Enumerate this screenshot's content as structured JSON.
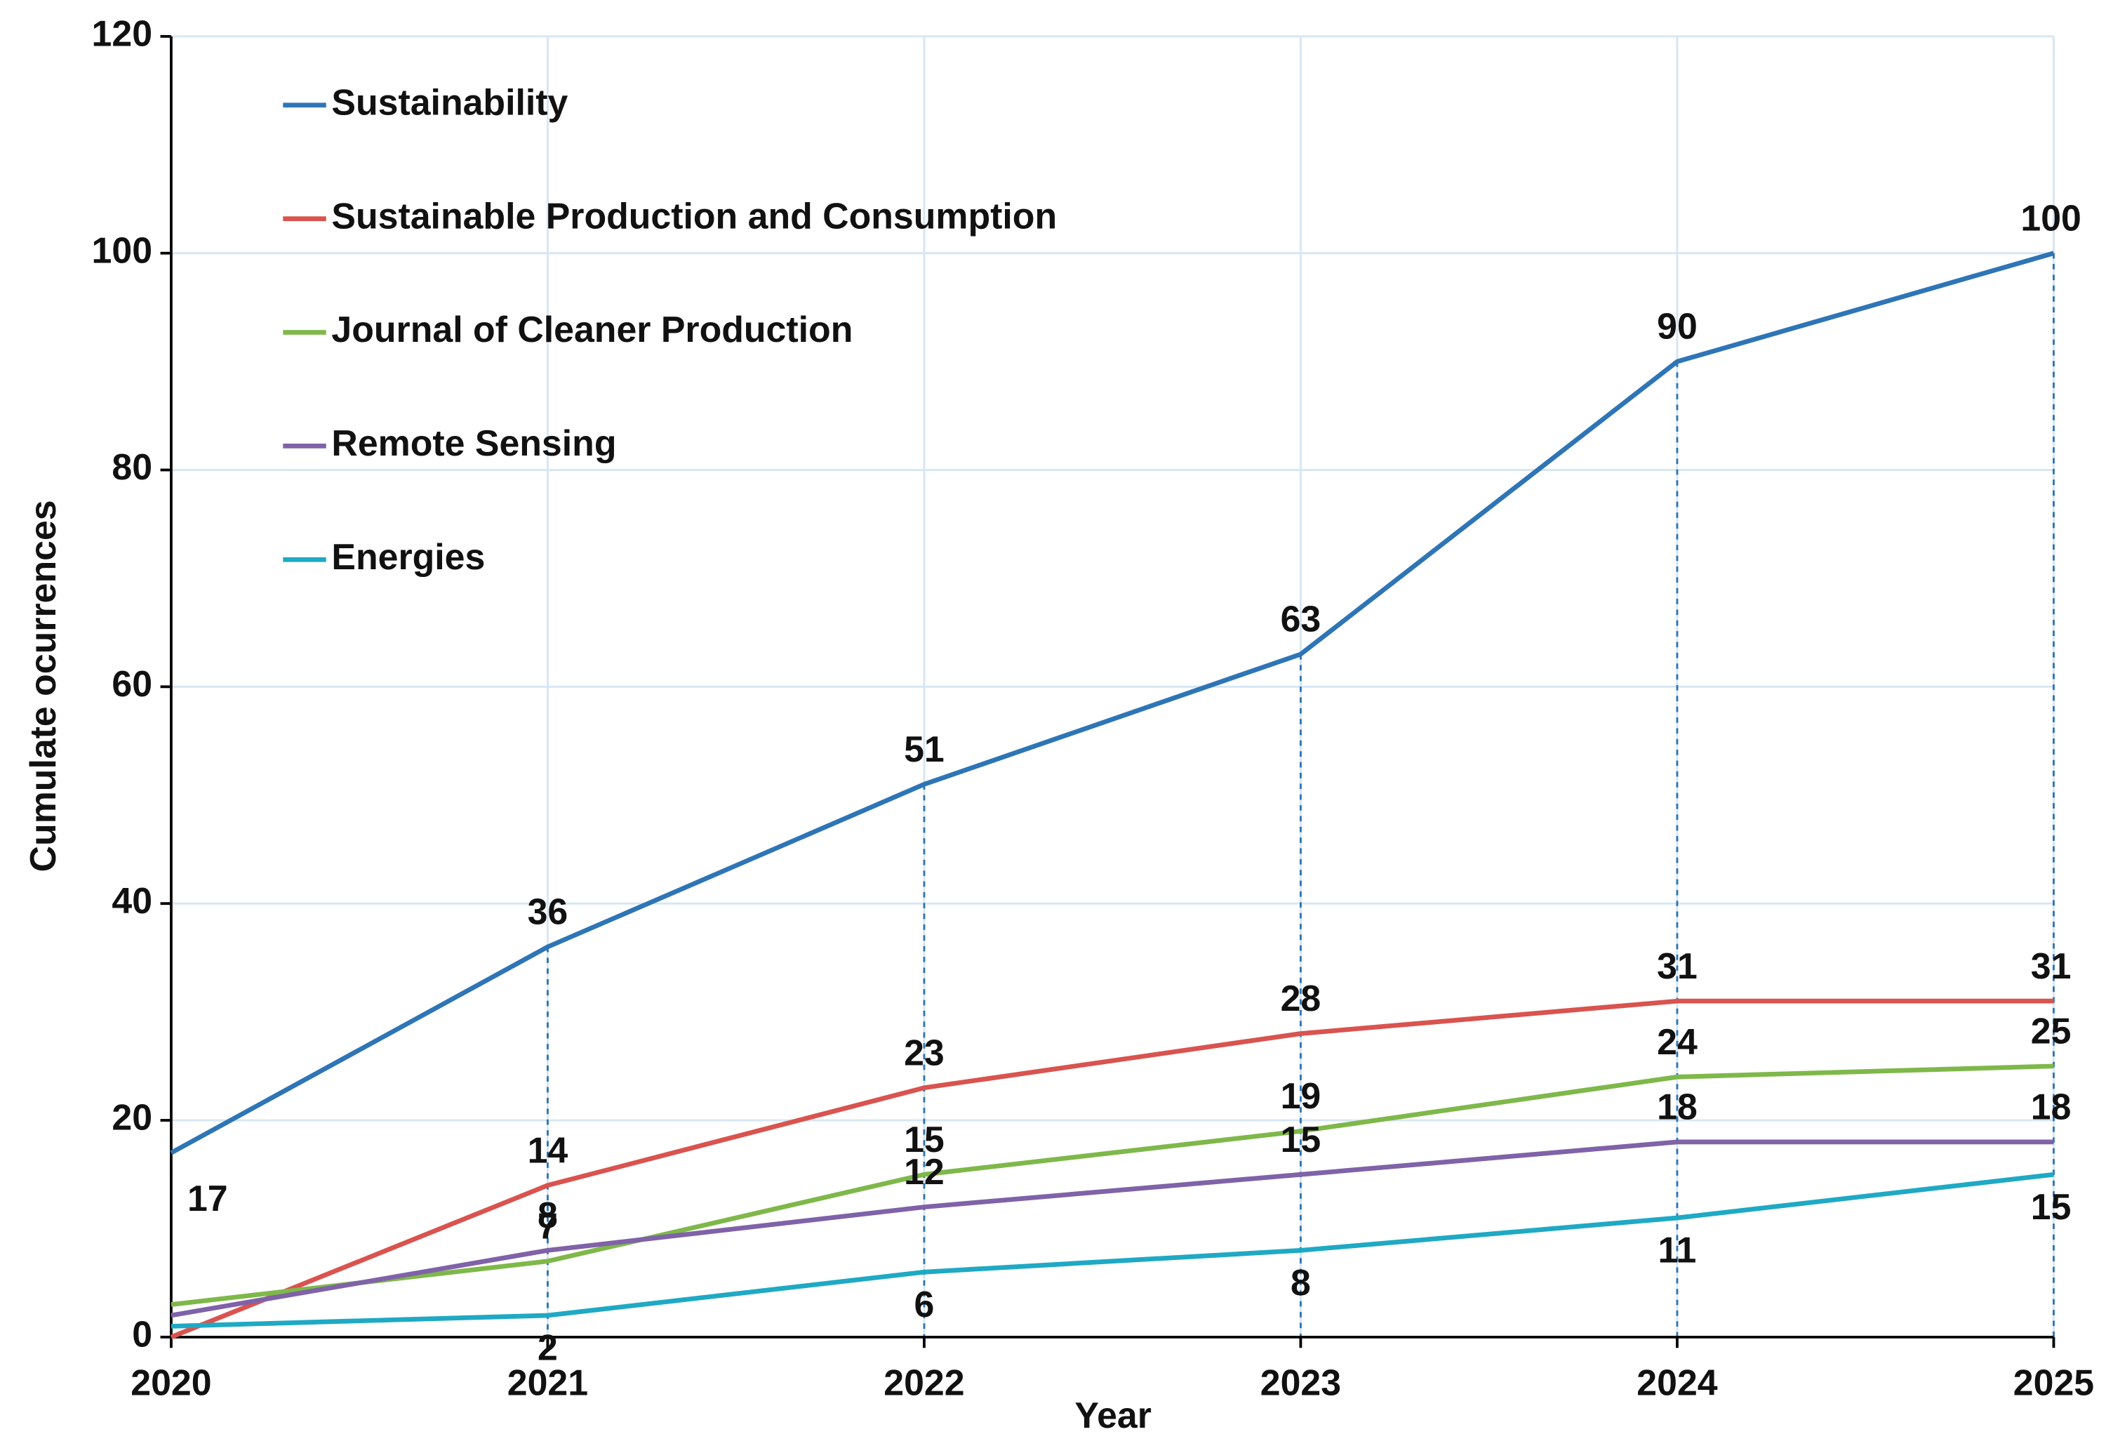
{
  "chart_data": {
    "type": "line",
    "x_label": "Year",
    "y_label": "Cumulate ocurrences",
    "x": [
      2020,
      2021,
      2022,
      2023,
      2024,
      2025
    ],
    "xlim": [
      2020,
      2025
    ],
    "xticks": [
      2020,
      2021,
      2022,
      2023,
      2024,
      2025
    ],
    "ylim": [
      0,
      120
    ],
    "yticks": [
      0,
      20,
      40,
      60,
      80,
      100,
      120
    ],
    "grid": true,
    "legend": "upper left",
    "series": [
      {
        "name": "Sustainability",
        "color": "#2e75b6",
        "values": [
          17,
          36,
          51,
          63,
          90,
          100
        ],
        "value_labels": [
          "17",
          "36",
          "51",
          "63",
          "90",
          "100"
        ]
      },
      {
        "name": "Sustainable Production and Consumption",
        "color": "#d9534f",
        "values": [
          0,
          14,
          23,
          28,
          31,
          31
        ],
        "value_labels": [
          null,
          "14",
          "23",
          "28",
          "31",
          "31"
        ]
      },
      {
        "name": "Journal of Cleaner Production",
        "color": "#7fb84a",
        "values": [
          3,
          7,
          15,
          19,
          24,
          25
        ],
        "value_labels": [
          null,
          "7",
          "15",
          "19",
          "24",
          "25"
        ]
      },
      {
        "name": "Remote Sensing",
        "color": "#7f62a8",
        "values": [
          2,
          8,
          12,
          15,
          18,
          18
        ],
        "value_labels": [
          null,
          "8",
          "12",
          "15",
          "18",
          "18"
        ]
      },
      {
        "name": "Energies",
        "color": "#1fa9c4",
        "values": [
          1,
          2,
          6,
          8,
          11,
          15
        ],
        "value_labels": [
          null,
          "2",
          "6",
          "8",
          "11",
          "15"
        ]
      }
    ]
  }
}
